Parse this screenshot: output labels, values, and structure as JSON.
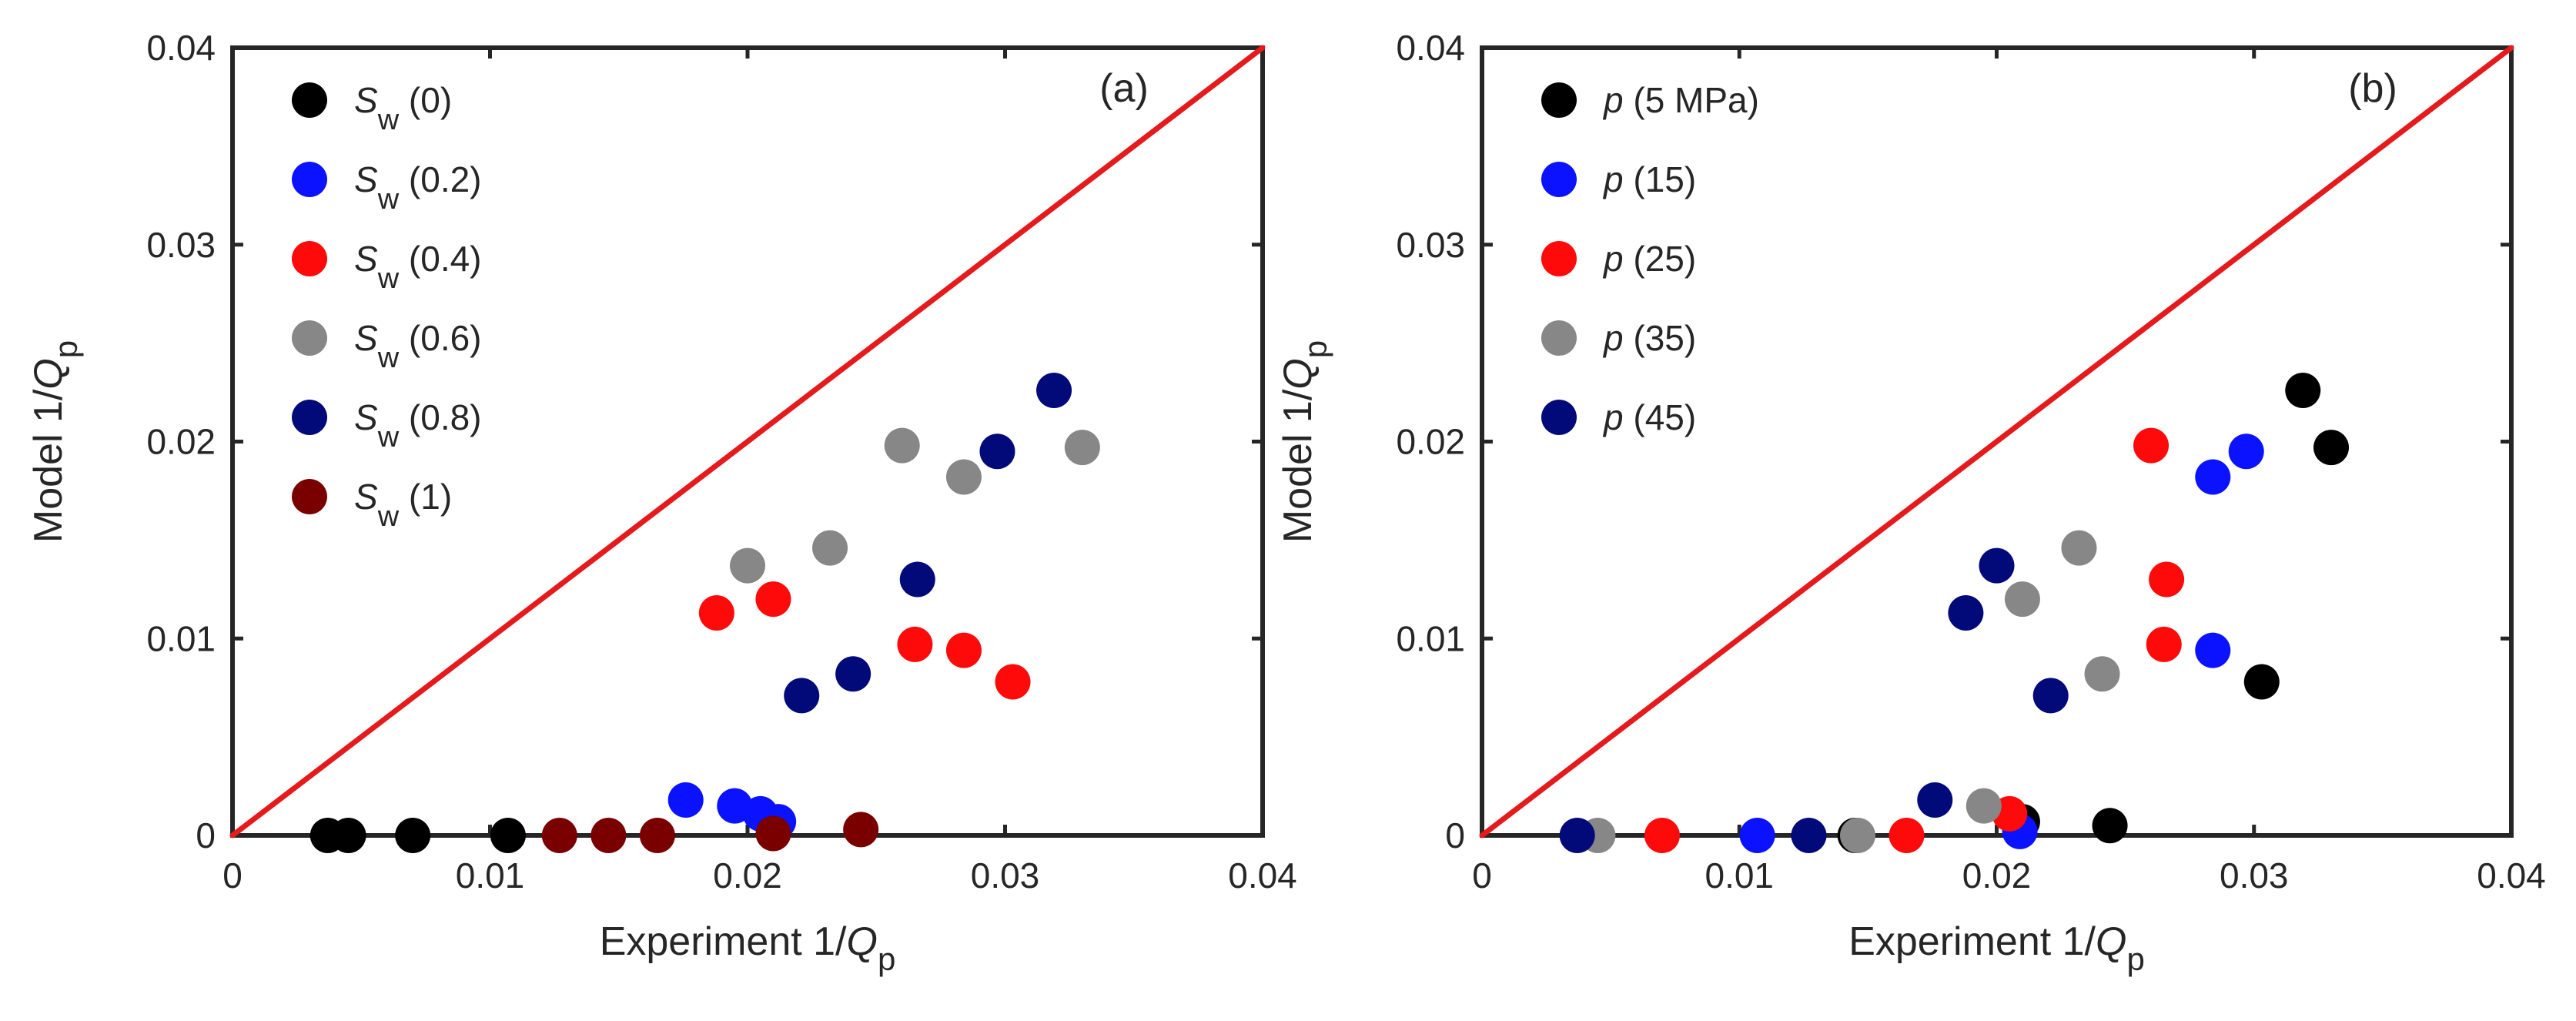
{
  "chart_data": [
    {
      "type": "scatter",
      "panel_label": "(a)",
      "xlabel": {
        "text": "Experiment 1/",
        "var": "Q",
        "sub": "p"
      },
      "ylabel": {
        "text": "Model 1/",
        "var": "Q",
        "sub": "p"
      },
      "xlim": [
        0,
        0.04
      ],
      "ylim": [
        0,
        0.04
      ],
      "xticks": [
        0,
        0.01,
        0.02,
        0.03,
        0.04
      ],
      "yticks": [
        0,
        0.01,
        0.02,
        0.03,
        0.04
      ],
      "xtick_labels": [
        "0",
        "0.01",
        "0.02",
        "0.03",
        "0.04"
      ],
      "ytick_labels": [
        "0",
        "0.01",
        "0.02",
        "0.03",
        "0.04"
      ],
      "reference_line": {
        "label": "1:1 line",
        "from": [
          0,
          0
        ],
        "to": [
          0.04,
          0.04
        ],
        "color": "#e41a1c"
      },
      "legend_position": "top-left",
      "series": [
        {
          "name": "Sw (0)",
          "symbol": "S",
          "sub": "w",
          "value_text": " (0)",
          "color": "#000000",
          "points": [
            [
              0.0037,
              0.0
            ],
            [
              0.0045,
              0.0
            ],
            [
              0.007,
              0.0
            ],
            [
              0.0107,
              0.0
            ]
          ]
        },
        {
          "name": "Sw (0.2)",
          "symbol": "S",
          "sub": "w",
          "value_text": " (0.2)",
          "color": "#0a12ff",
          "points": [
            [
              0.0176,
              0.0018
            ],
            [
              0.0195,
              0.0015
            ],
            [
              0.0205,
              0.0011
            ],
            [
              0.0212,
              0.0007
            ]
          ]
        },
        {
          "name": "Sw (0.4)",
          "symbol": "S",
          "sub": "w",
          "value_text": " (0.4)",
          "color": "#ff0a0a",
          "points": [
            [
              0.0188,
              0.0113
            ],
            [
              0.021,
              0.012
            ],
            [
              0.0265,
              0.0097
            ],
            [
              0.0284,
              0.0094
            ],
            [
              0.0303,
              0.0078
            ]
          ]
        },
        {
          "name": "Sw (0.6)",
          "symbol": "S",
          "sub": "w",
          "value_text": " (0.6)",
          "color": "#878787",
          "points": [
            [
              0.02,
              0.0137
            ],
            [
              0.0232,
              0.0146
            ],
            [
              0.026,
              0.0198
            ],
            [
              0.0284,
              0.0182
            ],
            [
              0.033,
              0.0197
            ]
          ]
        },
        {
          "name": "Sw (0.8)",
          "symbol": "S",
          "sub": "w",
          "value_text": " (0.8)",
          "color": "#020a7a",
          "points": [
            [
              0.0221,
              0.0071
            ],
            [
              0.0241,
              0.0082
            ],
            [
              0.0266,
              0.013
            ],
            [
              0.0297,
              0.0195
            ],
            [
              0.0319,
              0.0226
            ]
          ]
        },
        {
          "name": "Sw (1)",
          "symbol": "S",
          "sub": "w",
          "value_text": " (1)",
          "color": "#7a0000",
          "points": [
            [
              0.0127,
              0.0
            ],
            [
              0.0146,
              0.0
            ],
            [
              0.0165,
              0.0
            ],
            [
              0.021,
              0.0001
            ],
            [
              0.0244,
              0.0003
            ]
          ]
        }
      ]
    },
    {
      "type": "scatter",
      "panel_label": "(b)",
      "xlabel": {
        "text": "Experiment 1/",
        "var": "Q",
        "sub": "p"
      },
      "ylabel": {
        "text": "Model 1/",
        "var": "Q",
        "sub": "p"
      },
      "xlim": [
        0,
        0.04
      ],
      "ylim": [
        0,
        0.04
      ],
      "xticks": [
        0,
        0.01,
        0.02,
        0.03,
        0.04
      ],
      "yticks": [
        0,
        0.01,
        0.02,
        0.03,
        0.04
      ],
      "xtick_labels": [
        "0",
        "0.01",
        "0.02",
        "0.03",
        "0.04"
      ],
      "ytick_labels": [
        "0",
        "0.01",
        "0.02",
        "0.03",
        "0.04"
      ],
      "reference_line": {
        "label": "1:1 line",
        "from": [
          0,
          0
        ],
        "to": [
          0.04,
          0.04
        ],
        "color": "#e41a1c"
      },
      "legend_position": "top-left",
      "series": [
        {
          "name": "p (5 MPa)",
          "symbol": "p",
          "sub": "",
          "value_text": " (5 MPa)",
          "color": "#000000",
          "points": [
            [
              0.0145,
              0.0
            ],
            [
              0.021,
              0.0007
            ],
            [
              0.0244,
              0.0005
            ],
            [
              0.0303,
              0.0078
            ],
            [
              0.0319,
              0.0226
            ],
            [
              0.033,
              0.0197
            ]
          ]
        },
        {
          "name": "p (15)",
          "symbol": "p",
          "sub": "",
          "value_text": " (15)",
          "color": "#0a12ff",
          "points": [
            [
              0.0107,
              0.0
            ],
            [
              0.0209,
              0.0002
            ],
            [
              0.0284,
              0.0182
            ],
            [
              0.0284,
              0.0094
            ],
            [
              0.0297,
              0.0195
            ]
          ]
        },
        {
          "name": "p (25)",
          "symbol": "p",
          "sub": "",
          "value_text": " (25)",
          "color": "#ff0a0a",
          "points": [
            [
              0.007,
              0.0
            ],
            [
              0.0165,
              0.0
            ],
            [
              0.0205,
              0.0011
            ],
            [
              0.026,
              0.0198
            ],
            [
              0.0266,
              0.013
            ],
            [
              0.0265,
              0.0097
            ]
          ]
        },
        {
          "name": "p (35)",
          "symbol": "p",
          "sub": "",
          "value_text": " (35)",
          "color": "#878787",
          "points": [
            [
              0.0045,
              0.0
            ],
            [
              0.0146,
              0.0
            ],
            [
              0.0195,
              0.0015
            ],
            [
              0.021,
              0.012
            ],
            [
              0.0232,
              0.0146
            ],
            [
              0.0241,
              0.0082
            ]
          ]
        },
        {
          "name": "p (45)",
          "symbol": "p",
          "sub": "",
          "value_text": " (45)",
          "color": "#020a7a",
          "points": [
            [
              0.0037,
              0.0
            ],
            [
              0.0127,
              0.0
            ],
            [
              0.0176,
              0.0018
            ],
            [
              0.0188,
              0.0113
            ],
            [
              0.02,
              0.0137
            ],
            [
              0.0221,
              0.0071
            ]
          ]
        }
      ]
    }
  ]
}
